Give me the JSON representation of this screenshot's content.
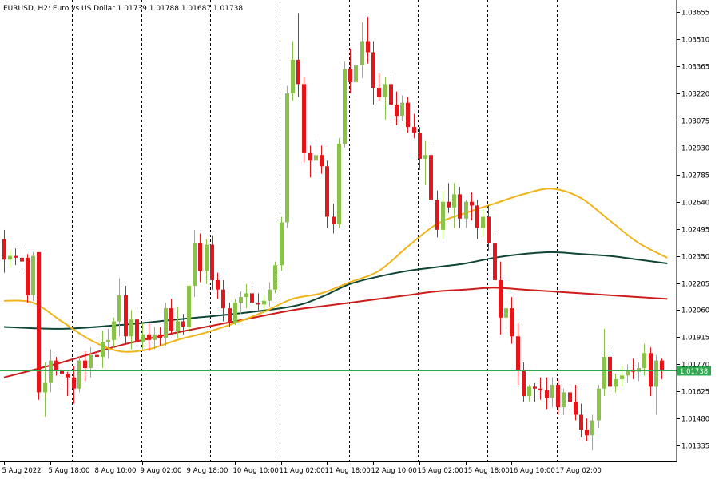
{
  "chart_data": {
    "type": "candlestick",
    "title": "EURUSD, H2:  Euro vs US Dollar  1.01739 1.01788 1.01687 1.01738",
    "ylim": [
      1.0125,
      1.0372
    ],
    "y_ticks": [
      1.03655,
      1.0351,
      1.03365,
      1.0322,
      1.03075,
      1.0293,
      1.02785,
      1.0264,
      1.02495,
      1.0235,
      1.02205,
      1.0206,
      1.01915,
      1.0177,
      1.01625,
      1.0148,
      1.01335
    ],
    "y_tick_labels": [
      "1.03655",
      "1.03510",
      "1.03365",
      "1.03220",
      "1.03075",
      "1.02930",
      "1.02785",
      "1.02640",
      "1.02495",
      "1.02350",
      "1.02205",
      "1.02060",
      "1.01915",
      "1.01770",
      "1.01625",
      "1.01480",
      "1.01335"
    ],
    "x_labels": [
      "5 Aug 2022",
      "5 Aug 18:00",
      "8 Aug 10:00",
      "9 Aug 02:00",
      "9 Aug 18:00",
      "10 Aug 10:00",
      "11 Aug 02:00",
      "11 Aug 18:00",
      "12 Aug 10:00",
      "15 Aug 02:00",
      "15 Aug 18:00",
      "16 Aug 10:00",
      "17 Aug 02:00"
    ],
    "x_label_bars": [
      0,
      8,
      16,
      24,
      32,
      40,
      48,
      56,
      64,
      72,
      80,
      88,
      96
    ],
    "period_separator_bars": [
      11,
      23,
      35,
      47,
      59,
      71,
      83,
      95
    ],
    "current_price": 1.01738,
    "current_price_label": "1.01738",
    "colors": {
      "bull": "#8bc34a",
      "bear": "#e3171b",
      "ma_fast": "#f0b418",
      "ma_mid": "#0f4536",
      "ma_slow": "#cd1c1c",
      "price_line": "#2fa84f",
      "grid": "#000000"
    },
    "candles": [
      [
        1.0244,
        1.0249,
        1.0226,
        1.0233
      ],
      [
        1.0233,
        1.0238,
        1.0229,
        1.0235
      ],
      [
        1.0235,
        1.0239,
        1.023,
        1.0234
      ],
      [
        1.0234,
        1.024,
        1.0228,
        1.0232
      ],
      [
        1.0234,
        1.0236,
        1.021,
        1.0214
      ],
      [
        1.0214,
        1.0237,
        1.0211,
        1.0235
      ],
      [
        1.0237,
        1.0237,
        1.0158,
        1.0162
      ],
      [
        1.0162,
        1.0178,
        1.0149,
        1.0167
      ],
      [
        1.0167,
        1.0185,
        1.0162,
        1.0179
      ],
      [
        1.0179,
        1.0181,
        1.0171,
        1.0174
      ],
      [
        1.0174,
        1.0178,
        1.0166,
        1.0172
      ],
      [
        1.0172,
        1.0173,
        1.016,
        1.017
      ],
      [
        1.017,
        1.0176,
        1.0156,
        1.0164
      ],
      [
        1.0164,
        1.0181,
        1.0162,
        1.0179
      ],
      [
        1.0179,
        1.0184,
        1.0168,
        1.0175
      ],
      [
        1.0175,
        1.0186,
        1.017,
        1.0182
      ],
      [
        1.0182,
        1.0192,
        1.0176,
        1.0181
      ],
      [
        1.0181,
        1.0195,
        1.0175,
        1.0189
      ],
      [
        1.0189,
        1.0196,
        1.018,
        1.019
      ],
      [
        1.019,
        1.0202,
        1.0186,
        1.02
      ],
      [
        1.02,
        1.0223,
        1.0192,
        1.0214
      ],
      [
        1.0214,
        1.0219,
        1.0188,
        1.0192
      ],
      [
        1.0192,
        1.0206,
        1.0185,
        1.0201
      ],
      [
        1.0201,
        1.0206,
        1.0187,
        1.0189
      ],
      [
        1.0189,
        1.0199,
        1.0185,
        1.0193
      ],
      [
        1.0193,
        1.0199,
        1.0184,
        1.019
      ],
      [
        1.019,
        1.0197,
        1.0185,
        1.0193
      ],
      [
        1.0193,
        1.0197,
        1.0187,
        1.0191
      ],
      [
        1.0191,
        1.021,
        1.0187,
        1.0207
      ],
      [
        1.0207,
        1.0212,
        1.0193,
        1.0195
      ],
      [
        1.0195,
        1.0208,
        1.0191,
        1.02
      ],
      [
        1.02,
        1.0204,
        1.0193,
        1.0197
      ],
      [
        1.0197,
        1.022,
        1.0194,
        1.0219
      ],
      [
        1.0219,
        1.0249,
        1.0213,
        1.0242
      ],
      [
        1.0242,
        1.0247,
        1.0221,
        1.0227
      ],
      [
        1.0227,
        1.0244,
        1.022,
        1.0241
      ],
      [
        1.0241,
        1.0246,
        1.0217,
        1.0222
      ],
      [
        1.0222,
        1.0226,
        1.0212,
        1.0217
      ],
      [
        1.0217,
        1.0222,
        1.02,
        1.0207
      ],
      [
        1.0207,
        1.021,
        1.0197,
        1.0199
      ],
      [
        1.0199,
        1.0212,
        1.0198,
        1.021
      ],
      [
        1.021,
        1.0216,
        1.0204,
        1.0213
      ],
      [
        1.0213,
        1.022,
        1.0207,
        1.0215
      ],
      [
        1.0215,
        1.0219,
        1.0206,
        1.021
      ],
      [
        1.021,
        1.0215,
        1.0206,
        1.0209
      ],
      [
        1.0209,
        1.0214,
        1.0205,
        1.0211
      ],
      [
        1.0211,
        1.0221,
        1.0208,
        1.0217
      ],
      [
        1.0217,
        1.0232,
        1.0215,
        1.023
      ],
      [
        1.023,
        1.0256,
        1.0227,
        1.0253
      ],
      [
        1.0253,
        1.0326,
        1.025,
        1.0322
      ],
      [
        1.0322,
        1.035,
        1.0318,
        1.034
      ],
      [
        1.034,
        1.0365,
        1.032,
        1.0327
      ],
      [
        1.0327,
        1.0331,
        1.0285,
        1.029
      ],
      [
        1.029,
        1.0294,
        1.0277,
        1.0286
      ],
      [
        1.0286,
        1.0297,
        1.0281,
        1.0289
      ],
      [
        1.0289,
        1.0294,
        1.0279,
        1.0283
      ],
      [
        1.0283,
        1.0286,
        1.025,
        1.0256
      ],
      [
        1.0256,
        1.0263,
        1.0247,
        1.0252
      ],
      [
        1.0252,
        1.0298,
        1.025,
        1.0295
      ],
      [
        1.0295,
        1.0339,
        1.0293,
        1.0335
      ],
      [
        1.0335,
        1.0346,
        1.0322,
        1.0328
      ],
      [
        1.0328,
        1.0342,
        1.032,
        1.0337
      ],
      [
        1.0337,
        1.036,
        1.033,
        1.035
      ],
      [
        1.035,
        1.0363,
        1.0338,
        1.0344
      ],
      [
        1.0344,
        1.035,
        1.0316,
        1.0325
      ],
      [
        1.0325,
        1.0333,
        1.0318,
        1.032
      ],
      [
        1.032,
        1.0331,
        1.0308,
        1.0327
      ],
      [
        1.0327,
        1.0332,
        1.0306,
        1.0316
      ],
      [
        1.0316,
        1.0323,
        1.0305,
        1.031
      ],
      [
        1.031,
        1.0321,
        1.0307,
        1.0317
      ],
      [
        1.0317,
        1.032,
        1.0301,
        1.0304
      ],
      [
        1.0304,
        1.0311,
        1.0298,
        1.0301
      ],
      [
        1.0301,
        1.0304,
        1.0281,
        1.0287
      ],
      [
        1.0287,
        1.0297,
        1.0273,
        1.0289
      ],
      [
        1.0289,
        1.0296,
        1.0255,
        1.0265
      ],
      [
        1.0265,
        1.027,
        1.0245,
        1.0249
      ],
      [
        1.0249,
        1.027,
        1.0244,
        1.0264
      ],
      [
        1.0264,
        1.0274,
        1.0258,
        1.0261
      ],
      [
        1.0261,
        1.0274,
        1.025,
        1.0268
      ],
      [
        1.0268,
        1.0272,
        1.025,
        1.0255
      ],
      [
        1.0255,
        1.0265,
        1.025,
        1.0264
      ],
      [
        1.0264,
        1.0269,
        1.0254,
        1.0262
      ],
      [
        1.0262,
        1.0265,
        1.0244,
        1.025
      ],
      [
        1.025,
        1.026,
        1.0245,
        1.0256
      ],
      [
        1.0256,
        1.0262,
        1.0238,
        1.0242
      ],
      [
        1.0242,
        1.0246,
        1.0218,
        1.0222
      ],
      [
        1.0222,
        1.0232,
        1.0193,
        1.0202
      ],
      [
        1.0202,
        1.0211,
        1.0196,
        1.0207
      ],
      [
        1.0207,
        1.0213,
        1.0188,
        1.0192
      ],
      [
        1.0192,
        1.0199,
        1.0166,
        1.0174
      ],
      [
        1.0174,
        1.0178,
        1.0157,
        1.016
      ],
      [
        1.016,
        1.0166,
        1.0157,
        1.0165
      ],
      [
        1.0165,
        1.0167,
        1.0157,
        1.0164
      ],
      [
        1.0164,
        1.017,
        1.0158,
        1.0163
      ],
      [
        1.0163,
        1.017,
        1.0153,
        1.0159
      ],
      [
        1.0159,
        1.017,
        1.0154,
        1.0166
      ],
      [
        1.0166,
        1.0169,
        1.015,
        1.0154
      ],
      [
        1.0154,
        1.0164,
        1.015,
        1.0162
      ],
      [
        1.0162,
        1.0165,
        1.0153,
        1.0157
      ],
      [
        1.0157,
        1.0166,
        1.0147,
        1.015
      ],
      [
        1.015,
        1.0156,
        1.0138,
        1.0142
      ],
      [
        1.0142,
        1.0148,
        1.0136,
        1.0139
      ],
      [
        1.0139,
        1.015,
        1.0131,
        1.0147
      ],
      [
        1.0147,
        1.0166,
        1.0143,
        1.0164
      ],
      [
        1.0164,
        1.0196,
        1.016,
        1.0181
      ],
      [
        1.0181,
        1.0186,
        1.0162,
        1.0165
      ],
      [
        1.0165,
        1.0172,
        1.0162,
        1.0169
      ],
      [
        1.0169,
        1.0176,
        1.0165,
        1.0171
      ],
      [
        1.0171,
        1.0177,
        1.0167,
        1.0174
      ],
      [
        1.0174,
        1.018,
        1.0169,
        1.0173
      ],
      [
        1.0173,
        1.0178,
        1.0168,
        1.0175
      ],
      [
        1.0175,
        1.0188,
        1.0171,
        1.0183
      ],
      [
        1.0183,
        1.0186,
        1.016,
        1.0165
      ],
      [
        1.0165,
        1.0182,
        1.015,
        1.0179
      ],
      [
        1.0179,
        1.018,
        1.0169,
        1.0174
      ]
    ],
    "ma_fast": [
      [
        0,
        1.0211
      ],
      [
        5,
        1.021
      ],
      [
        10,
        1.02
      ],
      [
        15,
        1.019
      ],
      [
        20,
        1.0184
      ],
      [
        25,
        1.0185
      ],
      [
        30,
        1.019
      ],
      [
        35,
        1.0194
      ],
      [
        40,
        1.0199
      ],
      [
        45,
        1.0205
      ],
      [
        50,
        1.0212
      ],
      [
        55,
        1.0215
      ],
      [
        60,
        1.0221
      ],
      [
        65,
        1.0227
      ],
      [
        70,
        1.024
      ],
      [
        75,
        1.0252
      ],
      [
        80,
        1.0258
      ],
      [
        85,
        1.0263
      ],
      [
        90,
        1.0268
      ],
      [
        95,
        1.0271
      ],
      [
        100,
        1.0266
      ],
      [
        105,
        1.0254
      ],
      [
        110,
        1.0242
      ],
      [
        115,
        1.0234
      ]
    ],
    "ma_mid": [
      [
        0,
        1.0197
      ],
      [
        10,
        1.0196
      ],
      [
        20,
        1.0198
      ],
      [
        30,
        1.0201
      ],
      [
        40,
        1.0204
      ],
      [
        50,
        1.0208
      ],
      [
        55,
        1.0213
      ],
      [
        60,
        1.022
      ],
      [
        65,
        1.0224
      ],
      [
        70,
        1.0227
      ],
      [
        75,
        1.0229
      ],
      [
        80,
        1.0231
      ],
      [
        85,
        1.0234
      ],
      [
        90,
        1.0236
      ],
      [
        95,
        1.0237
      ],
      [
        100,
        1.0236
      ],
      [
        105,
        1.0235
      ],
      [
        110,
        1.0233
      ],
      [
        115,
        1.0231
      ]
    ],
    "ma_slow": [
      [
        0,
        1.017
      ],
      [
        10,
        1.0178
      ],
      [
        20,
        1.0187
      ],
      [
        30,
        1.0194
      ],
      [
        40,
        1.02
      ],
      [
        50,
        1.0206
      ],
      [
        55,
        1.0208
      ],
      [
        60,
        1.021
      ],
      [
        65,
        1.0212
      ],
      [
        70,
        1.0214
      ],
      [
        75,
        1.0216
      ],
      [
        80,
        1.0217
      ],
      [
        85,
        1.0218
      ],
      [
        90,
        1.0217
      ],
      [
        95,
        1.0216
      ],
      [
        100,
        1.0215
      ],
      [
        105,
        1.0214
      ],
      [
        110,
        1.0213
      ],
      [
        115,
        1.0212
      ]
    ]
  }
}
